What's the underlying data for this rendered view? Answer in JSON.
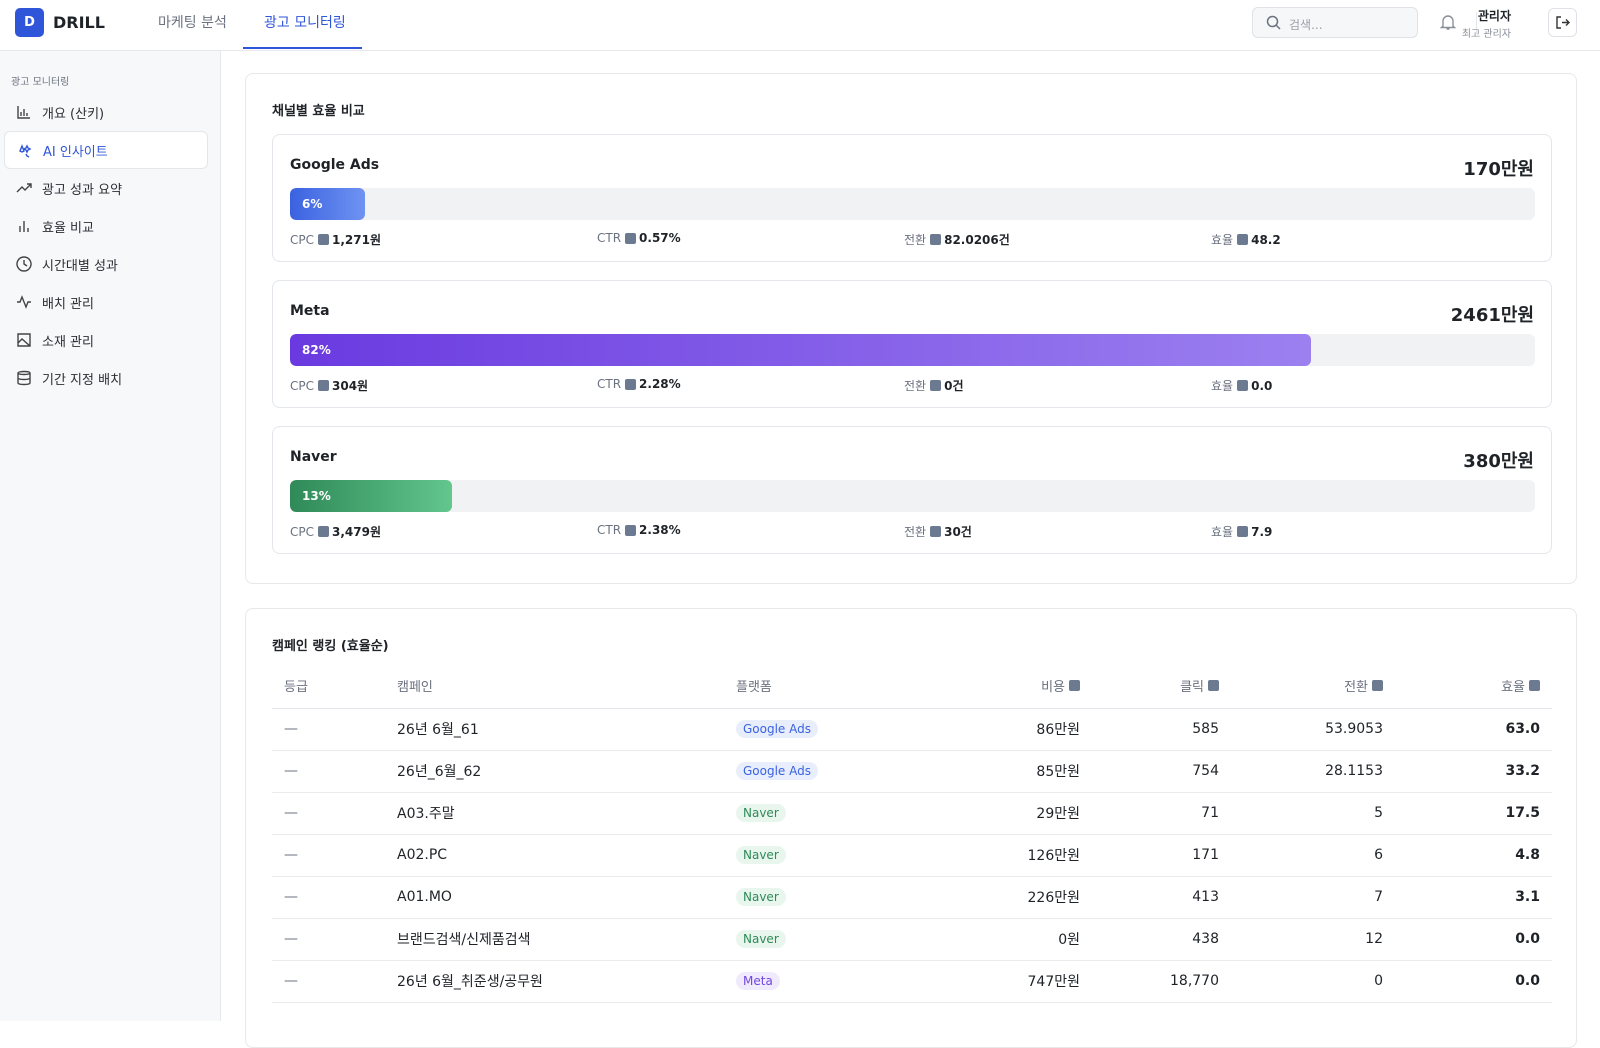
{
  "nav": {
    "logo_letter": "D",
    "brand": "DRILL",
    "tabs": [
      "마케팅 분석",
      "광고 모니터링"
    ],
    "search_placeholder": "검색...",
    "user_name": "관리자",
    "user_role": "최고 관리자"
  },
  "sidebar": {
    "section": "광고 모니터링",
    "items": [
      "개요 (산키)",
      "AI 인사이트",
      "광고 성과 요약",
      "효율 비교",
      "시간대별 성과",
      "배치 관리",
      "소재 관리",
      "기간 지정 배치"
    ]
  },
  "channels": {
    "title": "채널별 효율 비교",
    "items": [
      {
        "name": "Google Ads",
        "total": "170만원",
        "share": 6,
        "share_label": "6%",
        "color": [
          "#3a62e0",
          "#6f93f2"
        ],
        "badge": [
          "#e8eefc",
          "#3a62e0"
        ],
        "metrics": [
          {
            "label": "CPC",
            "value": "1,271원"
          },
          {
            "label": "CTR",
            "value": "0.57%"
          },
          {
            "label": "전환",
            "value": "82.0206건"
          },
          {
            "label": "효율",
            "value": "48.2"
          }
        ]
      },
      {
        "name": "Meta",
        "total": "2461만원",
        "share": 82,
        "share_label": "82%",
        "color": [
          "#6a3ae0",
          "#9c80f0"
        ],
        "badge": [
          "#f0eafd",
          "#7246e0"
        ],
        "metrics": [
          {
            "label": "CPC",
            "value": "304원"
          },
          {
            "label": "CTR",
            "value": "2.28%"
          },
          {
            "label": "전환",
            "value": "0건"
          },
          {
            "label": "효율",
            "value": "0.0"
          }
        ]
      },
      {
        "name": "Naver",
        "total": "380만원",
        "share": 13,
        "share_label": "13%",
        "color": [
          "#2f8a58",
          "#62c68d"
        ],
        "badge": [
          "#e8f6ee",
          "#2f8a58"
        ],
        "metrics": [
          {
            "label": "CPC",
            "value": "3,479원"
          },
          {
            "label": "CTR",
            "value": "2.38%"
          },
          {
            "label": "전환",
            "value": "30건"
          },
          {
            "label": "효율",
            "value": "7.9"
          }
        ]
      }
    ]
  },
  "ranking": {
    "title": "캠페인 랭킹 (효율순)",
    "columns": [
      "등급",
      "캠페인",
      "플랫폼",
      "비용",
      "클릭",
      "전환",
      "효율"
    ],
    "rows": [
      [
        "—",
        "26년 6월_61",
        "Google Ads",
        "86만원",
        "585",
        "53.9053",
        "63.0"
      ],
      [
        "—",
        "26년_6월_62",
        "Google Ads",
        "85만원",
        "754",
        "28.1153",
        "33.2"
      ],
      [
        "—",
        "A03.주말",
        "Naver",
        "29만원",
        "71",
        "5",
        "17.5"
      ],
      [
        "—",
        "A02.PC",
        "Naver",
        "126만원",
        "171",
        "6",
        "4.8"
      ],
      [
        "—",
        "A01.MO",
        "Naver",
        "226만원",
        "413",
        "7",
        "3.1"
      ],
      [
        "—",
        "브랜드검색/신제품검색",
        "Naver",
        "0원",
        "438",
        "12",
        "0.0"
      ],
      [
        "—",
        "26년 6월_취준생/공무원",
        "Meta",
        "747만원",
        "18,770",
        "0",
        "0.0"
      ]
    ]
  }
}
